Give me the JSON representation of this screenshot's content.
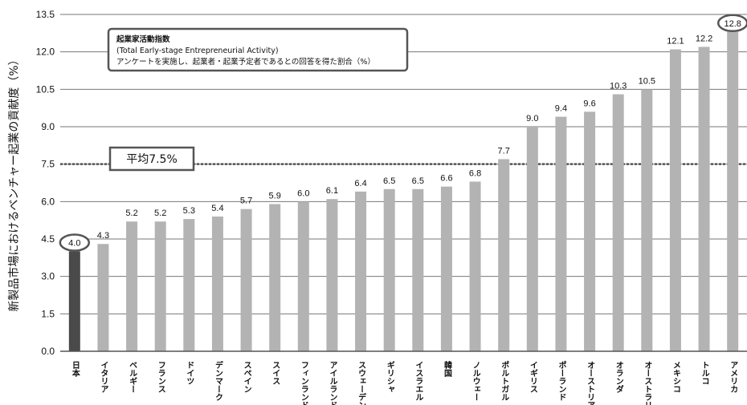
{
  "chart_data": {
    "type": "bar",
    "ylabel": "新製品市場におけるベンチャー起業の貢献度（%）",
    "ylim": [
      0,
      13.5
    ],
    "yticks": [
      "0.0",
      "1.5",
      "3.0",
      "4.5",
      "6.0",
      "7.5",
      "9.0",
      "10.5",
      "12.0",
      "13.5"
    ],
    "categories": [
      "日本",
      "イタリア",
      "ベルギー",
      "フランス",
      "ドイツ",
      "デンマーク",
      "スペイン",
      "スイス",
      "フィンランド",
      "アイルランド",
      "スウェーデン",
      "ギリシャ",
      "イスラエル",
      "韓国",
      "ノルウェー",
      "ポルトガル",
      "イギリス",
      "ポーランド",
      "オーストリア",
      "オランダ",
      "オーストラリア",
      "メキシコ",
      "トルコ",
      "アメリカ"
    ],
    "values": [
      4.0,
      4.3,
      5.2,
      5.2,
      5.3,
      5.4,
      5.7,
      5.9,
      6.0,
      6.1,
      6.4,
      6.5,
      6.5,
      6.6,
      6.8,
      7.7,
      9.0,
      9.4,
      9.6,
      10.3,
      10.5,
      12.1,
      12.2,
      12.8
    ],
    "value_labels": [
      "4.0",
      "4.3",
      "5.2",
      "5.2",
      "5.3",
      "5.4",
      "5.7",
      "5.9",
      "6.0",
      "6.1",
      "6.4",
      "6.5",
      "6.5",
      "6.6",
      "6.8",
      "7.7",
      "9.0",
      "9.4",
      "9.6",
      "10.3",
      "10.5",
      "12.1",
      "12.2",
      "12.8"
    ],
    "highlight_category": "日本",
    "circled_labels": [
      "日本",
      "アメリカ"
    ],
    "average": {
      "value": 7.5,
      "label": "平均7.5%"
    },
    "annotation": {
      "title": "起業家活動指数",
      "subtitle": "(Total Early-stage Entrepreneurial Activity)",
      "note": "アンケートを実施し、起業者・起業予定者であるとの回答を得た割合（%）"
    },
    "colors": {
      "bar": "#b3b3b3",
      "highlight": "#4a4a4a",
      "grid": "#777777",
      "average_line": "#555555"
    },
    "grid": true,
    "legend": "none"
  }
}
